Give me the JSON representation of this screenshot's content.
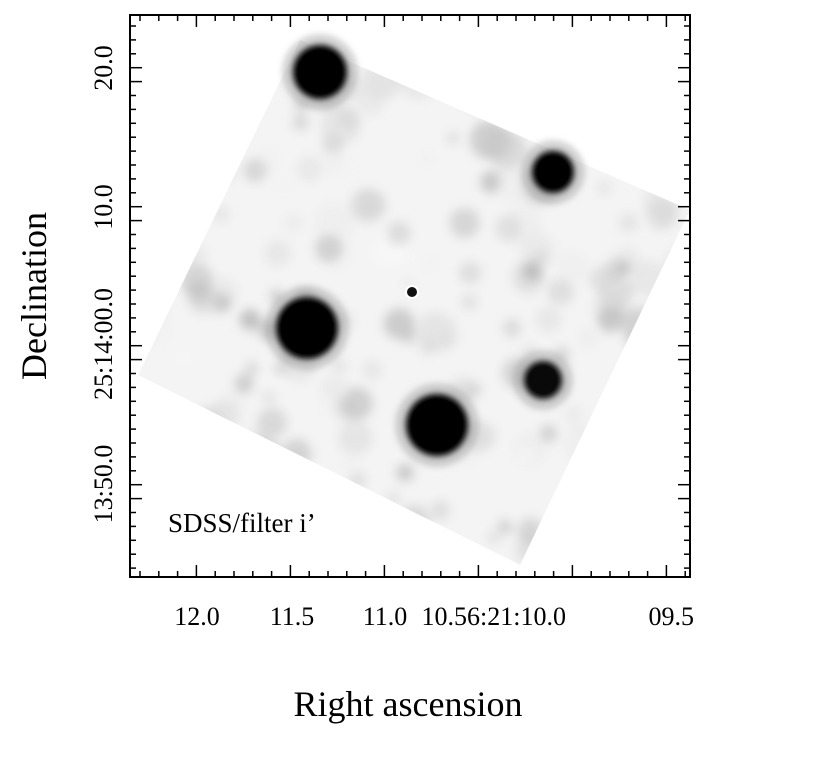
{
  "figure": {
    "xlabel": "Right ascension",
    "ylabel": "Declination",
    "annotation": "SDSS/filter i’",
    "x_ticks": [
      "12.0",
      "11.5",
      "11.0",
      "10.56:21:10.0",
      "09.5"
    ],
    "y_ticks": [
      "20.0",
      "10.0",
      "25:14:00.0",
      "13:50.0"
    ]
  },
  "image": {
    "colormap": "greyscale-inverted",
    "stars": [
      {
        "name": "star-top-left",
        "intensity": 1.0
      },
      {
        "name": "star-upper-right",
        "intensity": 1.0
      },
      {
        "name": "star-center-left",
        "intensity": 1.0
      },
      {
        "name": "star-lower-center",
        "intensity": 1.0
      },
      {
        "name": "star-right",
        "intensity": 0.95
      }
    ],
    "marker": {
      "name": "target-circle",
      "color": "#ffffff"
    }
  }
}
